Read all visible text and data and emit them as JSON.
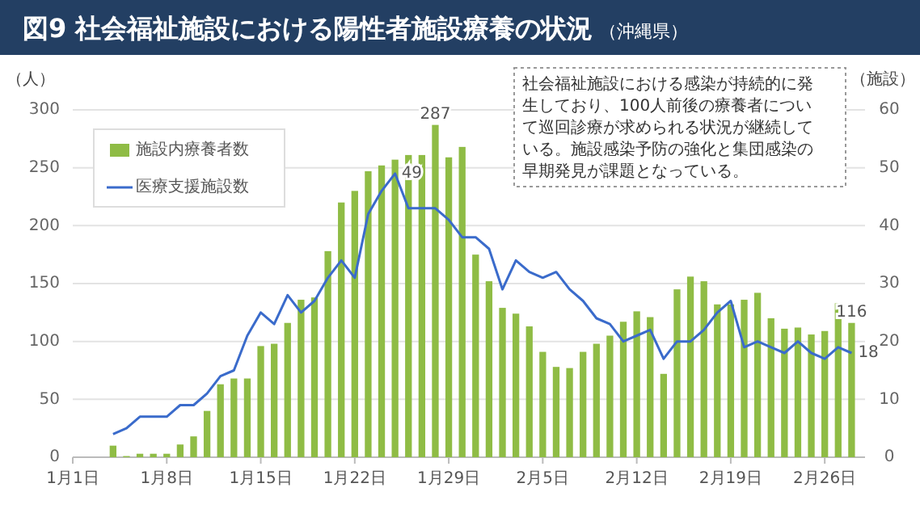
{
  "chart_data": {
    "type": "bar",
    "title": "図9 社会福祉施設における陽性者施設療養の状況",
    "subtitle": "（沖縄県）",
    "ylabel": "（人）",
    "y2label": "（施設）",
    "annotations": [
      "社会福祉施設における感染が持続的に発生しており、100人前後の療養者について巡回診療が求められる状況が継続している。施設感染予防の強化と集団感染の早期発見が課題となっている。"
    ],
    "x": [
      "--01-04",
      "--01-05",
      "--01-06",
      "--01-07",
      "--01-08",
      "--01-09",
      "--01-10",
      "--01-11",
      "--01-12",
      "--01-13",
      "--01-14",
      "--01-15",
      "--01-16",
      "--01-17",
      "--01-18",
      "--01-19",
      "--01-20",
      "--01-21",
      "--01-22",
      "--01-23",
      "--01-24",
      "--01-25",
      "--01-26",
      "--01-27",
      "--01-28",
      "--01-29",
      "--01-30",
      "--01-31",
      "--02-01",
      "--02-02",
      "--02-03",
      "--02-04",
      "--02-05",
      "--02-06",
      "--02-07",
      "--02-08",
      "--02-09",
      "--02-10",
      "--02-11",
      "--02-12",
      "--02-13",
      "--02-14",
      "--02-15",
      "--02-16",
      "--02-17",
      "--02-18",
      "--02-19",
      "--02-20",
      "--02-21",
      "--02-22",
      "--02-23",
      "--02-24",
      "--02-25",
      "--02-26",
      "--02-27",
      "--02-28"
    ],
    "series": [
      {
        "name": "施設内療養者数",
        "color": "#8fbc45",
        "values": [
          10,
          1,
          3,
          3,
          3,
          11,
          18,
          40,
          63,
          68,
          68,
          96,
          98,
          116,
          136,
          138,
          178,
          220,
          230,
          247,
          252,
          257,
          261,
          261,
          287,
          259,
          268,
          175,
          152,
          129,
          124,
          113,
          91,
          78,
          77,
          91,
          98,
          105,
          117,
          126,
          121,
          72,
          145,
          156,
          152,
          132,
          132,
          136,
          142,
          120,
          111,
          112,
          106,
          109,
          133,
          116
        ],
        "value_labels": [
          null,
          null,
          null,
          null,
          null,
          null,
          null,
          null,
          null,
          null,
          null,
          null,
          null,
          null,
          null,
          null,
          null,
          null,
          null,
          null,
          null,
          null,
          null,
          null,
          "287",
          null,
          null,
          null,
          null,
          null,
          null,
          null,
          null,
          null,
          null,
          null,
          null,
          null,
          null,
          null,
          null,
          null,
          null,
          null,
          null,
          null,
          null,
          null,
          null,
          null,
          null,
          null,
          null,
          null,
          null,
          "116"
        ]
      },
      {
        "name": "医療支援施設数",
        "type": "line",
        "axis": "y2",
        "color": "#3a6bcb",
        "values": [
          4,
          5,
          7,
          7,
          7,
          9,
          9,
          11,
          14,
          15,
          21,
          25,
          23,
          28,
          25,
          27,
          31,
          34,
          31,
          42,
          46,
          49,
          43,
          43,
          43,
          41,
          38,
          38,
          36,
          29,
          34,
          32,
          31,
          32,
          29,
          27,
          24,
          23,
          20,
          21,
          22,
          17,
          20,
          20,
          22,
          25,
          27,
          19,
          20,
          19,
          18,
          20,
          18,
          17,
          19,
          18
        ],
        "value_labels": [
          null,
          null,
          null,
          null,
          null,
          null,
          null,
          null,
          null,
          null,
          null,
          null,
          null,
          null,
          null,
          null,
          null,
          null,
          null,
          null,
          null,
          "49",
          null,
          null,
          null,
          null,
          null,
          null,
          null,
          null,
          null,
          null,
          null,
          null,
          null,
          null,
          null,
          null,
          null,
          null,
          null,
          null,
          null,
          null,
          null,
          null,
          null,
          null,
          null,
          null,
          null,
          null,
          null,
          null,
          null,
          "18"
        ]
      }
    ],
    "xlim": [
      "--01-01",
      "--03-01"
    ],
    "xticks": [
      {
        "value": "--01-01",
        "label": "1月1日"
      },
      {
        "value": "--01-08",
        "label": "1月8日"
      },
      {
        "value": "--01-15",
        "label": "1月15日"
      },
      {
        "value": "--01-22",
        "label": "1月22日"
      },
      {
        "value": "--01-29",
        "label": "1月29日"
      },
      {
        "value": "--02-05",
        "label": "2月5日"
      },
      {
        "value": "--02-12",
        "label": "2月12日"
      },
      {
        "value": "--02-19",
        "label": "2月19日"
      },
      {
        "value": "--02-26",
        "label": "2月26日"
      }
    ],
    "ylim": [
      0,
      300
    ],
    "yticks": [
      0,
      50,
      100,
      150,
      200,
      250,
      300
    ],
    "y2lim": [
      0,
      60
    ],
    "y2ticks": [
      0,
      10,
      20,
      30,
      40,
      50,
      60
    ],
    "grid": "y",
    "legend": "top left"
  }
}
